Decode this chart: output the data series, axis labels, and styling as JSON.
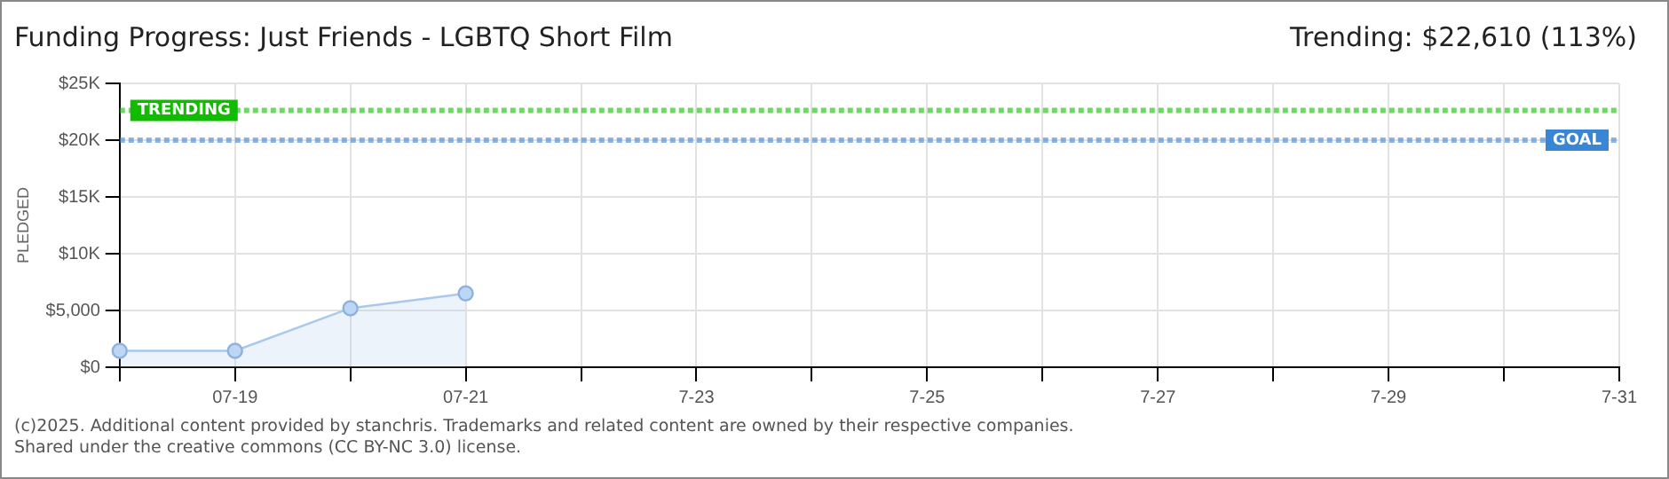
{
  "chart_data": {
    "type": "area",
    "title": "Funding Progress: Just Friends - LGBTQ Short Film",
    "ylabel": "PLEDGED",
    "annotations": [
      "Trending: $22,610 (113%)",
      "(c)2025. Additional content provided by stanchris. Trademarks and related content are owned by their respective companies.",
      "Shared under the creative commons (CC BY-NC 3.0) license."
    ],
    "categories": [
      null,
      "07-19",
      null,
      "07-21",
      null,
      "7-23",
      null,
      "7-25",
      null,
      "7-27",
      null,
      "7-29",
      null,
      "7-31"
    ],
    "series": [
      {
        "color": "#a9c8ee",
        "values": [
          1450,
          1450,
          5200,
          6500,
          null,
          null,
          null,
          null,
          null,
          null,
          null,
          null,
          null,
          null
        ]
      }
    ],
    "ylim": [
      0,
      25000
    ],
    "yticks": [
      {
        "value": 0,
        "label": "$0"
      },
      {
        "value": 5000,
        "label": "$5,000"
      },
      {
        "value": 10000,
        "label": "$10K"
      },
      {
        "value": 15000,
        "label": "$15K"
      },
      {
        "value": 20000,
        "label": "$20K"
      },
      {
        "value": 25000,
        "label": "$25K"
      }
    ],
    "ref_lines": [
      {
        "axis": "y",
        "value": 22610,
        "label": "TRENDING",
        "color": "#11bb00"
      },
      {
        "axis": "y",
        "value": 20000,
        "label": "GOAL",
        "color": "#3a86d6"
      }
    ],
    "grid": true,
    "legend": false,
    "marker": "circle"
  }
}
